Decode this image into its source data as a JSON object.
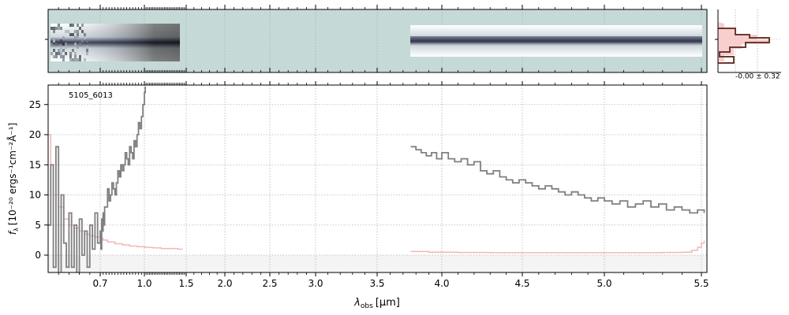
{
  "chart_data": {
    "type": "line",
    "object_label": "5105_6013",
    "xlabel_symbol": "λ",
    "xlabel_sub": "obs",
    "xlabel_unit": "[μm]",
    "ylabel_symbol": "f",
    "ylabel_sub": "λ",
    "ylabel_unit": "[10⁻²⁰ ergs⁻¹cm⁻²Å⁻¹]",
    "xlim": [
      0.6,
      5.52
    ],
    "ylim": [
      -3,
      28
    ],
    "x_scale": "piecewise (expanded below 1.5 μm)",
    "x_ticks": [
      "0.7",
      "1.0",
      "1.5",
      "2.0",
      "2.5",
      "3.0",
      "3.5",
      "4.0",
      "4.5",
      "5.0",
      "5.5"
    ],
    "y_ticks": [
      "0",
      "5",
      "10",
      "15",
      "20",
      "25"
    ],
    "grid": true,
    "inset_label": "-0.00 ± 0.32",
    "series": [
      {
        "role": "flux",
        "color": "#808080",
        "segments": [
          {
            "x": [
              0.6,
              0.605,
              0.61,
              0.615,
              0.62,
              0.625,
              0.63,
              0.635,
              0.64,
              0.645,
              0.65,
              0.655,
              0.66,
              0.665,
              0.67,
              0.675,
              0.68,
              0.685,
              0.69,
              0.695,
              0.7,
              0.705,
              0.71,
              0.715,
              0.72,
              0.725,
              0.73,
              0.74,
              0.75,
              0.76,
              0.77,
              0.78,
              0.79,
              0.8,
              0.81,
              0.82,
              0.83,
              0.84,
              0.85,
              0.86,
              0.87,
              0.88,
              0.89,
              0.9,
              0.91,
              0.92,
              0.93,
              0.94,
              0.95,
              0.96,
              0.97,
              0.98,
              0.99,
              1.0,
              1.01
            ],
            "y": [
              5,
              15,
              -2,
              18,
              -3,
              10,
              2,
              -2,
              7,
              -2,
              5,
              -3,
              6,
              0,
              4,
              -2,
              5,
              1,
              7,
              2,
              4,
              1,
              6,
              4,
              7,
              5,
              8,
              8,
              11,
              9,
              10,
              12,
              11,
              10,
              12,
              14,
              13,
              15,
              14,
              15,
              17,
              16,
              15,
              18,
              17,
              16,
              19,
              18,
              20,
              22,
              21,
              23,
              25,
              27,
              28
            ]
          },
          {
            "x": [
              3.76,
              3.8,
              3.84,
              3.88,
              3.92,
              3.96,
              4.0,
              4.04,
              4.08,
              4.12,
              4.16,
              4.2,
              4.24,
              4.28,
              4.32,
              4.36,
              4.4,
              4.44,
              4.48,
              4.52,
              4.56,
              4.6,
              4.64,
              4.68,
              4.72,
              4.76,
              4.8,
              4.84,
              4.88,
              4.92,
              4.96,
              5.0,
              5.04,
              5.08,
              5.12,
              5.16,
              5.2,
              5.24,
              5.28,
              5.32,
              5.36,
              5.4,
              5.44,
              5.48,
              5.51
            ],
            "y": [
              18,
              17.5,
              17,
              16.5,
              17,
              16,
              17,
              16,
              15.5,
              16,
              15,
              15.5,
              14,
              13.5,
              14,
              13,
              12.5,
              12,
              12.5,
              12,
              11.5,
              11,
              11.5,
              11,
              10.5,
              10,
              10.5,
              10,
              9.5,
              9,
              9.5,
              9,
              8.5,
              9,
              8,
              8.5,
              9,
              8,
              8.5,
              7.5,
              8,
              7.5,
              7,
              7.5,
              7
            ]
          }
        ]
      },
      {
        "role": "uncertainty",
        "color": "#f4b6b6",
        "segments": [
          {
            "x": [
              0.6,
              0.605,
              0.61,
              0.62,
              0.63,
              0.64,
              0.65,
              0.66,
              0.67,
              0.68,
              0.69,
              0.7,
              0.72,
              0.75,
              0.8,
              0.85,
              0.9,
              0.95,
              1.0,
              1.1,
              1.2,
              1.3,
              1.4,
              1.45
            ],
            "y": [
              20,
              15,
              10,
              8,
              6,
              5,
              4.5,
              4,
              3.5,
              3.2,
              3,
              2.8,
              2.5,
              2.2,
              1.9,
              1.7,
              1.5,
              1.4,
              1.3,
              1.2,
              1.1,
              1.1,
              1.0,
              1.1
            ]
          },
          {
            "x": [
              3.76,
              3.9,
              4.1,
              4.3,
              4.5,
              4.7,
              4.9,
              5.1,
              5.3,
              5.4,
              5.45,
              5.48,
              5.5,
              5.51
            ],
            "y": [
              0.6,
              0.5,
              0.45,
              0.4,
              0.4,
              0.4,
              0.4,
              0.4,
              0.45,
              0.5,
              0.8,
              1.3,
              2.0,
              2.4
            ]
          }
        ]
      }
    ]
  }
}
